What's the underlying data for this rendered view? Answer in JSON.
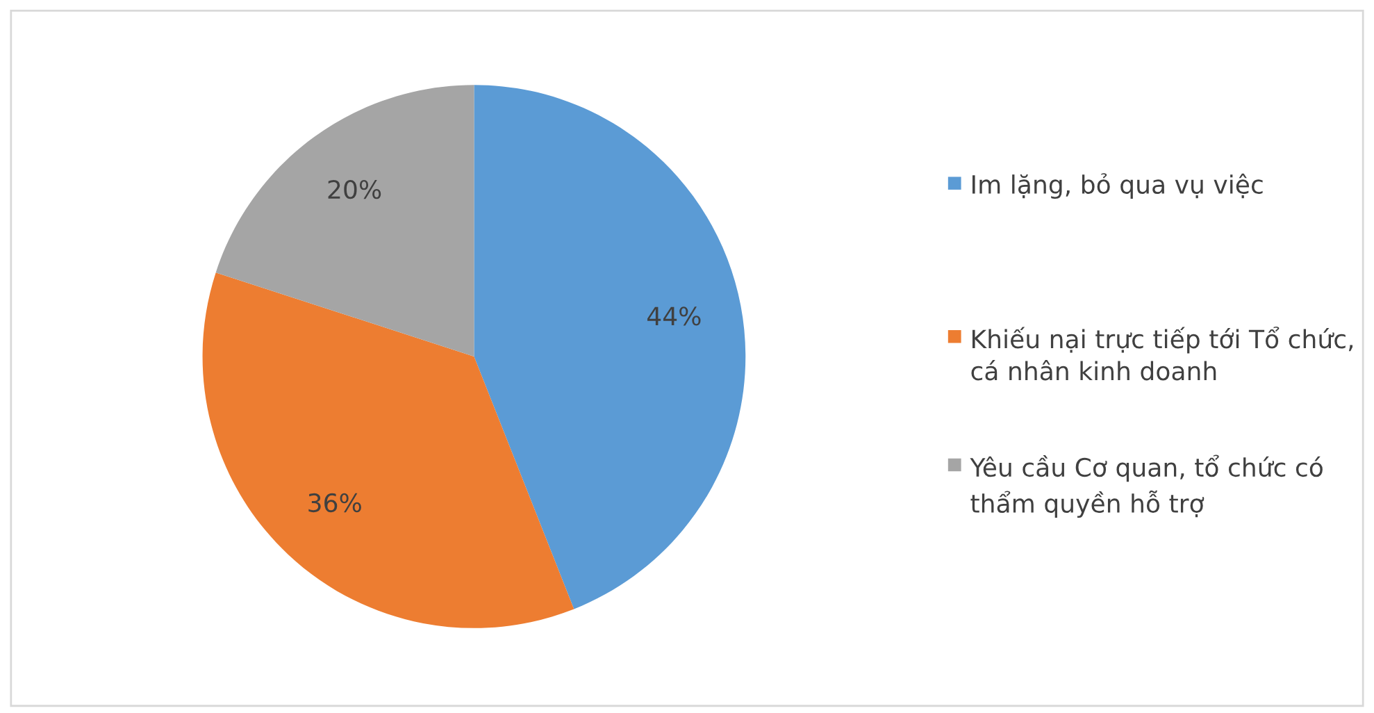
{
  "chart_data": {
    "type": "pie",
    "categories": [
      "Im lặng, bỏ qua vụ việc",
      "Khiếu nại trực tiếp tới Tổ chức, cá nhân kinh doanh",
      "Yêu cầu Cơ quan, tổ chức có thẩm quyền hỗ trợ"
    ],
    "values": [
      44,
      36,
      20
    ],
    "colors": [
      "#5b9bd5",
      "#ed7d31",
      "#a5a5a5"
    ],
    "value_labels": [
      "44%",
      "36%",
      "20%"
    ],
    "legend": "right"
  }
}
